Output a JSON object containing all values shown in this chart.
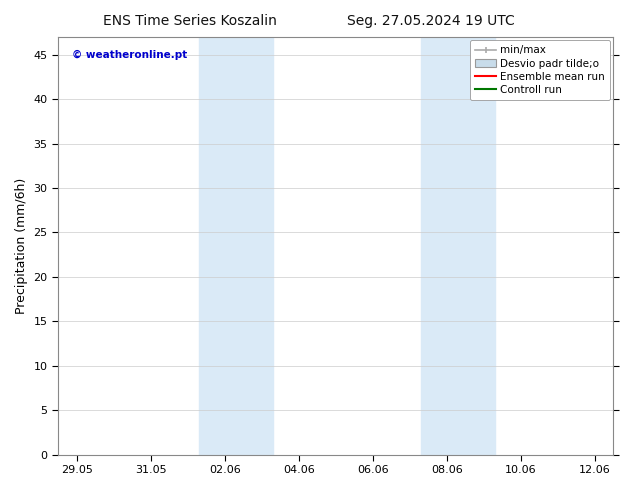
{
  "title_left": "ENS Time Series Koszalin",
  "title_right": "Seg. 27.05.2024 19 UTC",
  "ylabel": "Precipitation (mm/6h)",
  "watermark": "© weatheronline.pt",
  "watermark_color": "#0000cc",
  "ylim": [
    0,
    47
  ],
  "yticks": [
    0,
    5,
    10,
    15,
    20,
    25,
    30,
    35,
    40,
    45
  ],
  "xtick_labels": [
    "29.05",
    "31.05",
    "02.06",
    "04.06",
    "06.06",
    "08.06",
    "10.06",
    "12.06"
  ],
  "xtick_positions": [
    0,
    2,
    4,
    6,
    8,
    10,
    12,
    14
  ],
  "xlim": [
    -0.5,
    14.5
  ],
  "bg_color": "#ffffff",
  "plot_bg_color": "#ffffff",
  "shaded_bands": [
    {
      "x_start": 3.3,
      "x_end": 5.3,
      "color": "#daeaf7"
    },
    {
      "x_start": 9.3,
      "x_end": 11.3,
      "color": "#daeaf7"
    }
  ],
  "legend_items": [
    {
      "label": "min/max",
      "color": "#aaaaaa",
      "type": "errorbar"
    },
    {
      "label": "Desvio padr tilde;o",
      "color": "#c8dcea",
      "type": "patch"
    },
    {
      "label": "Ensemble mean run",
      "color": "#ff0000",
      "type": "line"
    },
    {
      "label": "Controll run",
      "color": "#007700",
      "type": "line"
    }
  ],
  "grid_color": "#cccccc",
  "title_fontsize": 10,
  "tick_fontsize": 8,
  "ylabel_fontsize": 9,
  "legend_fontsize": 7.5
}
